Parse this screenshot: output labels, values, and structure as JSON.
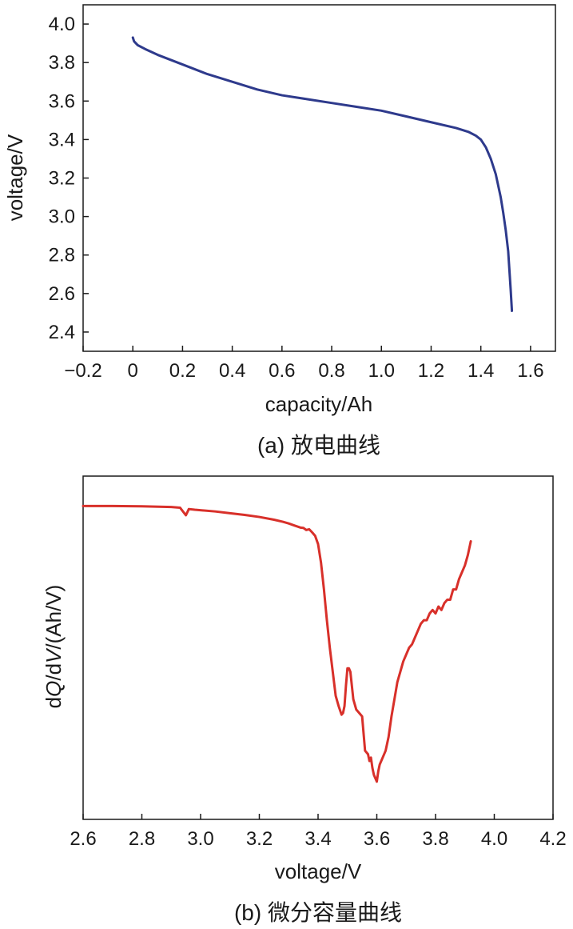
{
  "chart_data": [
    {
      "type": "line",
      "caption": "(a) 放电曲线",
      "xlabel": "capacity/Ah",
      "ylabel": "voltage/V",
      "xlim": [
        -0.2,
        1.7
      ],
      "ylim": [
        2.3,
        4.1
      ],
      "xticks": [
        -0.2,
        0,
        0.2,
        0.4,
        0.6,
        0.8,
        1.0,
        1.2,
        1.4,
        1.6
      ],
      "xtick_labels": [
        "−0.2",
        "0",
        "0.2",
        "0.4",
        "0.6",
        "0.8",
        "1.0",
        "1.2",
        "1.4",
        "1.6"
      ],
      "yticks": [
        2.4,
        2.6,
        2.8,
        3.0,
        3.2,
        3.4,
        3.6,
        3.8,
        4.0
      ],
      "ytick_labels": [
        "2.4",
        "2.6",
        "2.8",
        "3.0",
        "3.2",
        "3.4",
        "3.6",
        "3.8",
        "4.0"
      ],
      "color": "#2e3a8c",
      "series": [
        {
          "x": [
            0.0,
            0.005,
            0.02,
            0.05,
            0.1,
            0.2,
            0.3,
            0.4,
            0.5,
            0.6,
            0.7,
            0.8,
            0.9,
            1.0,
            1.1,
            1.2,
            1.3,
            1.35,
            1.38,
            1.4,
            1.42,
            1.44,
            1.46,
            1.48,
            1.49,
            1.5,
            1.51,
            1.515,
            1.52,
            1.525
          ],
          "y": [
            3.93,
            3.91,
            3.89,
            3.87,
            3.84,
            3.79,
            3.74,
            3.7,
            3.66,
            3.63,
            3.61,
            3.59,
            3.57,
            3.55,
            3.52,
            3.49,
            3.46,
            3.44,
            3.42,
            3.4,
            3.36,
            3.3,
            3.22,
            3.1,
            3.02,
            2.93,
            2.82,
            2.72,
            2.62,
            2.51
          ]
        }
      ]
    },
    {
      "type": "line",
      "caption": "(b) 微分容量曲线",
      "xlabel": "voltage/V",
      "ylabel_parts": [
        "dQ/dV/(Ah/V)"
      ],
      "ylabel_rich": [
        {
          "t": "d",
          "i": false
        },
        {
          "t": "Q",
          "i": true
        },
        {
          "t": "/d",
          "i": false
        },
        {
          "t": "V",
          "i": true
        },
        {
          "t": "/(Ah/V)",
          "i": false
        }
      ],
      "xlim": [
        2.6,
        4.2
      ],
      "ylim": [
        0,
        1
      ],
      "xticks": [
        2.6,
        2.8,
        3.0,
        3.2,
        3.4,
        3.6,
        3.8,
        4.0,
        4.2
      ],
      "xtick_labels": [
        "2.6",
        "2.8",
        "3.0",
        "3.2",
        "3.4",
        "3.6",
        "3.8",
        "4.0",
        "4.2"
      ],
      "yticks": [],
      "color": "#d8302a",
      "series": [
        {
          "x": [
            2.6,
            2.7,
            2.8,
            2.9,
            2.93,
            2.95,
            2.96,
            2.98,
            3.05,
            3.1,
            3.15,
            3.2,
            3.25,
            3.28,
            3.3,
            3.32,
            3.34,
            3.35,
            3.36,
            3.37,
            3.38,
            3.39,
            3.4,
            3.41,
            3.42,
            3.43,
            3.44,
            3.45,
            3.46,
            3.47,
            3.48,
            3.485,
            3.49,
            3.495,
            3.5,
            3.505,
            3.51,
            3.52,
            3.53,
            3.54,
            3.55,
            3.56,
            3.57,
            3.575,
            3.58,
            3.585,
            3.59,
            3.595,
            3.6,
            3.605,
            3.61,
            3.62,
            3.63,
            3.64,
            3.65,
            3.66,
            3.67,
            3.68,
            3.69,
            3.7,
            3.71,
            3.72,
            3.73,
            3.74,
            3.75,
            3.76,
            3.77,
            3.78,
            3.79,
            3.8,
            3.81,
            3.82,
            3.83,
            3.84,
            3.85,
            3.86,
            3.87,
            3.88,
            3.89,
            3.9,
            3.91,
            3.92
          ],
          "y": [
            0.913,
            0.913,
            0.912,
            0.91,
            0.908,
            0.886,
            0.904,
            0.902,
            0.897,
            0.892,
            0.887,
            0.881,
            0.873,
            0.867,
            0.862,
            0.856,
            0.85,
            0.849,
            0.843,
            0.845,
            0.836,
            0.826,
            0.802,
            0.748,
            0.67,
            0.58,
            0.5,
            0.43,
            0.36,
            0.33,
            0.305,
            0.31,
            0.33,
            0.39,
            0.44,
            0.44,
            0.43,
            0.35,
            0.32,
            0.31,
            0.3,
            0.2,
            0.19,
            0.17,
            0.18,
            0.15,
            0.13,
            0.12,
            0.11,
            0.14,
            0.16,
            0.18,
            0.2,
            0.24,
            0.3,
            0.35,
            0.4,
            0.43,
            0.46,
            0.48,
            0.5,
            0.51,
            0.53,
            0.55,
            0.57,
            0.58,
            0.58,
            0.6,
            0.61,
            0.6,
            0.62,
            0.61,
            0.63,
            0.64,
            0.64,
            0.67,
            0.67,
            0.7,
            0.72,
            0.74,
            0.77,
            0.81
          ]
        }
      ]
    }
  ]
}
